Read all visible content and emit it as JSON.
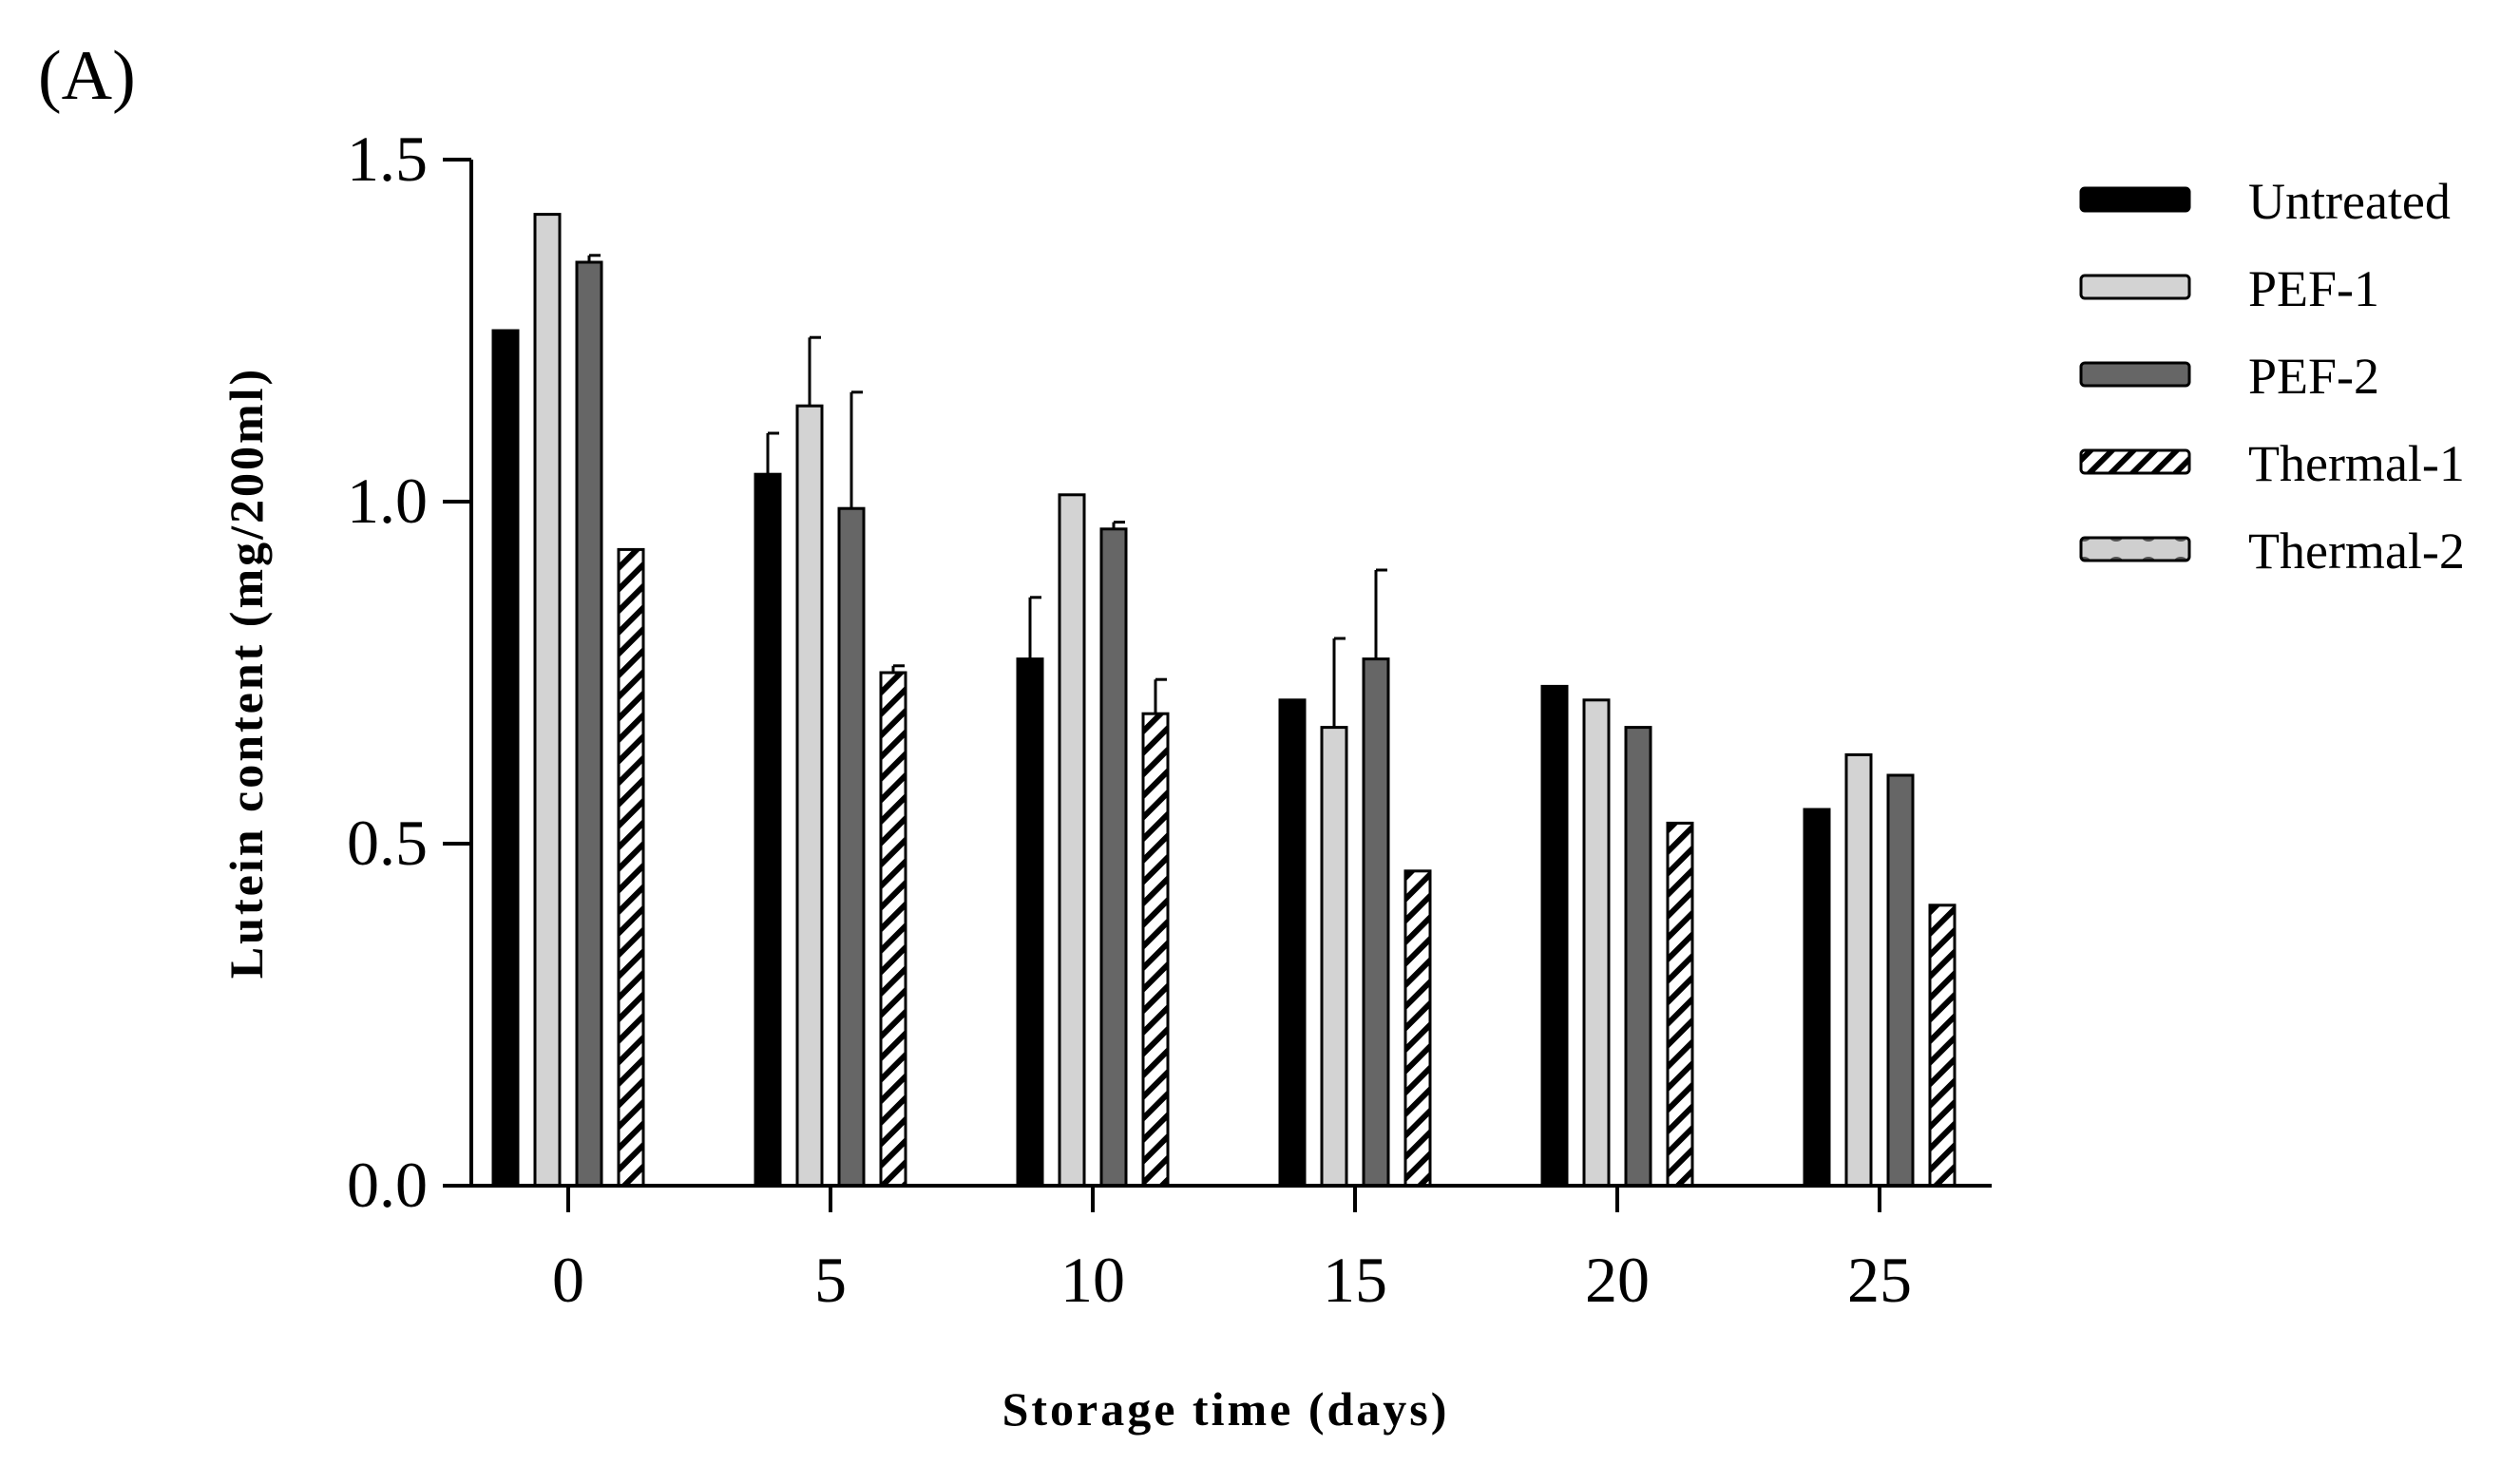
{
  "panel_label": "(A)",
  "colors": {
    "Untreated": "#000000",
    "PEF-1": "#d3d3d3",
    "PEF-2": "#666666",
    "Thermal-1": "#ffffff",
    "Thermal-2": "#cfcfcf"
  },
  "chart_data": {
    "type": "bar",
    "xlabel": "Storage time (days)",
    "ylabel": "Lutein content (mg/200ml)",
    "categories": [
      "0",
      "5",
      "10",
      "15",
      "20",
      "25"
    ],
    "ylim": [
      0,
      1.5
    ],
    "yticks": [
      "0.0",
      "0.5",
      "1.0",
      "1.5"
    ],
    "legend_position": "right",
    "grid": false,
    "series": [
      {
        "name": "Untreated",
        "pattern": "solid-black",
        "values": [
          1.25,
          1.04,
          0.77,
          0.71,
          0.73,
          0.55
        ],
        "errors": [
          0.005,
          0.06,
          0.09,
          0.005,
          0.005,
          0.005
        ]
      },
      {
        "name": "PEF-1",
        "pattern": "solid-light-gray",
        "values": [
          1.42,
          1.14,
          1.01,
          0.67,
          0.71,
          0.63
        ],
        "errors": [
          0.005,
          0.1,
          0.005,
          0.13,
          0.005,
          0.005
        ]
      },
      {
        "name": "PEF-2",
        "pattern": "solid-dark-gray",
        "values": [
          1.35,
          0.99,
          0.96,
          0.77,
          0.67,
          0.6
        ],
        "errors": [
          0.01,
          0.17,
          0.01,
          0.13,
          0.005,
          0.005
        ]
      },
      {
        "name": "Thermal-1",
        "pattern": "diagonal-hatch",
        "values": [
          0.93,
          0.75,
          0.69,
          0.46,
          0.53,
          0.41
        ],
        "errors": [
          0.005,
          0.01,
          0.05,
          0.005,
          0.005,
          0.005
        ]
      },
      {
        "name": "Thermal-2",
        "pattern": "dotted-gray",
        "values": [
          null,
          null,
          null,
          null,
          null,
          null
        ],
        "errors": [
          null,
          null,
          null,
          null,
          null,
          null
        ]
      }
    ]
  }
}
